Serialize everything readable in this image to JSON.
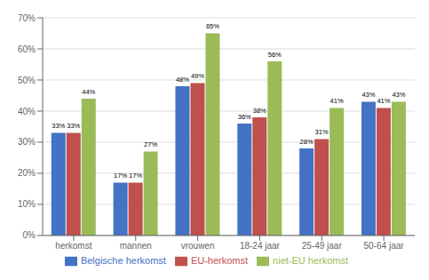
{
  "chart_data": {
    "type": "bar",
    "categories": [
      "herkomst",
      "mannen",
      "vrouwen",
      "18-24 jaar",
      "25-49 jaar",
      "50-64 jaar"
    ],
    "series": [
      {
        "name": "Belgische herkomst",
        "color": "#4472C4",
        "values": [
          33,
          17,
          48,
          36,
          28,
          43
        ],
        "value_labels": [
          "33%",
          "17%",
          "48%",
          "36%",
          "28%",
          "43%"
        ]
      },
      {
        "name": "EU-herkomst",
        "color": "#C0504D",
        "values": [
          33,
          17,
          49,
          38,
          31,
          41
        ],
        "value_labels": [
          "33%",
          "17%",
          "49%",
          "38%",
          "31%",
          "41%"
        ]
      },
      {
        "name": "niet-EU herkomst",
        "color": "#9BBB59",
        "values": [
          44,
          27,
          65,
          56,
          41,
          43
        ],
        "value_labels": [
          "44%",
          "27%",
          "65%",
          "56%",
          "41%",
          "43%"
        ]
      }
    ],
    "ylim": [
      0,
      70
    ],
    "yticks": [
      {
        "value": 0,
        "label": "0%"
      },
      {
        "value": 10,
        "label": "10%"
      },
      {
        "value": 20,
        "label": "20%"
      },
      {
        "value": 30,
        "label": "30%"
      },
      {
        "value": 40,
        "label": "40%"
      },
      {
        "value": 50,
        "label": "50%"
      },
      {
        "value": 60,
        "label": "60%"
      },
      {
        "value": 70,
        "label": "70%"
      }
    ],
    "grid": true,
    "legend": "bottom",
    "data_labels": true
  }
}
